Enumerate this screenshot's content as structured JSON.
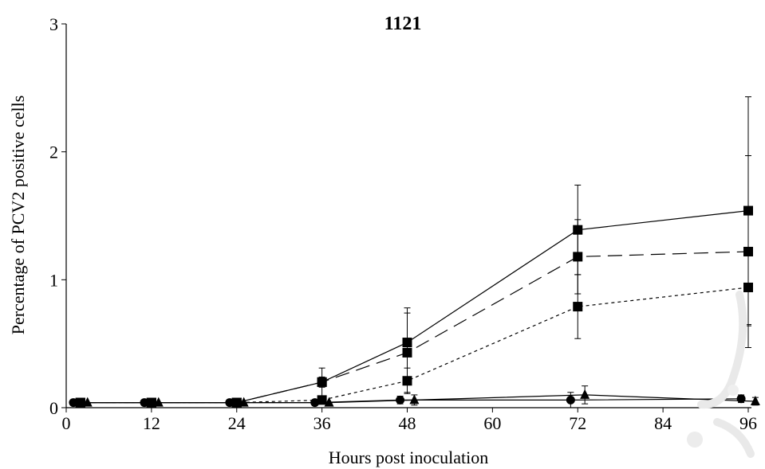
{
  "chart_data": {
    "type": "line",
    "title": "1121",
    "xlabel": "Hours post inoculation",
    "ylabel": "Percentage of PCV2 positive cells",
    "xlim": [
      0,
      96
    ],
    "ylim": [
      0,
      3
    ],
    "x_ticks": [
      "0",
      "12",
      "24",
      "36",
      "48",
      "60",
      "72",
      "84",
      "96"
    ],
    "y_ticks": [
      "0",
      "1",
      "2",
      "3"
    ],
    "grid": false,
    "legend": "none",
    "series": [
      {
        "style": "solid",
        "marker": "square",
        "x": [
          2,
          12,
          24,
          36,
          48,
          72,
          96
        ],
        "y": [
          0.04,
          0.04,
          0.04,
          0.2,
          0.51,
          1.39,
          1.54
        ],
        "err": [
          0,
          0,
          0,
          0.11,
          0.27,
          0.35,
          0.89
        ]
      },
      {
        "style": "longdash",
        "marker": "square",
        "x": [
          2,
          12,
          24,
          36,
          48,
          72,
          96
        ],
        "y": [
          0.04,
          0.04,
          0.04,
          0.2,
          0.43,
          1.18,
          1.22
        ],
        "err": [
          0,
          0,
          0,
          0.04,
          0.31,
          0.29,
          0.75
        ]
      },
      {
        "style": "shortdash",
        "marker": "square",
        "x": [
          2,
          12,
          24,
          36,
          48,
          72,
          96
        ],
        "y": [
          0.04,
          0.04,
          0.04,
          0.06,
          0.21,
          0.79,
          0.94
        ],
        "err": [
          0,
          0,
          0,
          0.02,
          0.1,
          0.25,
          0.3
        ]
      },
      {
        "style": "solid",
        "marker": "circle",
        "x": [
          1,
          11,
          23,
          35,
          47,
          71,
          95
        ],
        "y": [
          0.04,
          0.04,
          0.04,
          0.04,
          0.06,
          0.06,
          0.07
        ],
        "err": [
          0,
          0,
          0,
          0,
          0.03,
          0.06,
          0.03
        ]
      },
      {
        "style": "solid",
        "marker": "triangle",
        "x": [
          3,
          13,
          25,
          37,
          49,
          73,
          97
        ],
        "y": [
          0.04,
          0.04,
          0.04,
          0.04,
          0.06,
          0.1,
          0.05
        ],
        "err": [
          0,
          0,
          0,
          0,
          0.04,
          0.07,
          0.03
        ]
      }
    ]
  }
}
